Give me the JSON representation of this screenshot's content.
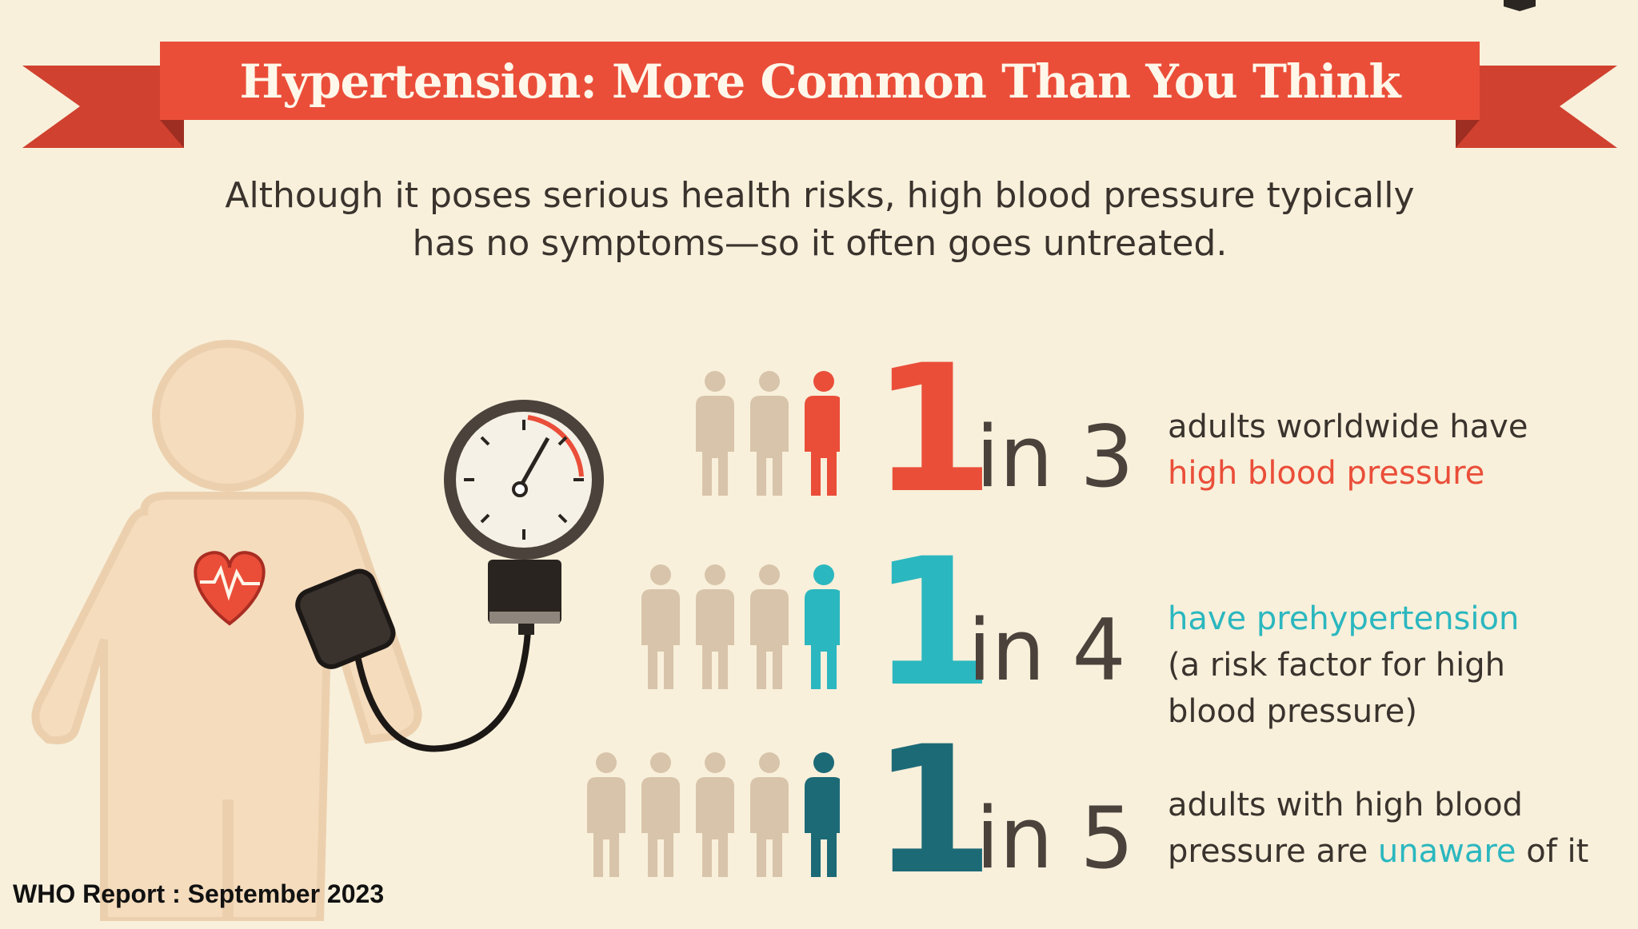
{
  "banner": {
    "title": "Hypertension: More Common Than You Think"
  },
  "subtitle": {
    "line1": "Although it poses serious health risks, high blood pressure typically",
    "line2": "has no symptoms—so it often goes untreated."
  },
  "colors": {
    "background": "#f8f0db",
    "banner": "#ea4e39",
    "banner_dark": "#c63a2b",
    "figure_skin": "#f1d6b5",
    "person_muted": "#d8c4aa",
    "red": "#ea4e39",
    "teal": "#2bb7bf",
    "dark_teal": "#1d6a77",
    "text": "#3a332d"
  },
  "stats": [
    {
      "big": "1",
      "rest": "in 3",
      "ratio": "1/3",
      "highlight_color": "#ea4e39",
      "people_total": 3,
      "line1": "adults worldwide have",
      "line2_highlight": "high blood pressure"
    },
    {
      "big": "1",
      "rest": "in 4",
      "ratio": "1/4",
      "highlight_color": "#2bb7bf",
      "people_total": 4,
      "line1_highlight": "have prehypertension",
      "line2": "(a risk factor for high",
      "line3": "blood pressure)"
    },
    {
      "big": "1",
      "rest": "in 5",
      "ratio": "1/5",
      "highlight_color": "#1d6a77",
      "people_total": 5,
      "line1": "adults with high blood",
      "line2_pre": "pressure are ",
      "line2_highlight": "unaware",
      "line2_post": " of it"
    }
  ],
  "icons": {
    "heart": "heart-icon",
    "gauge": "pressure-gauge-icon",
    "cuff": "blood-pressure-cuff-icon",
    "person": "person-icon"
  },
  "footer": {
    "note": "WHO Report : September 2023"
  }
}
